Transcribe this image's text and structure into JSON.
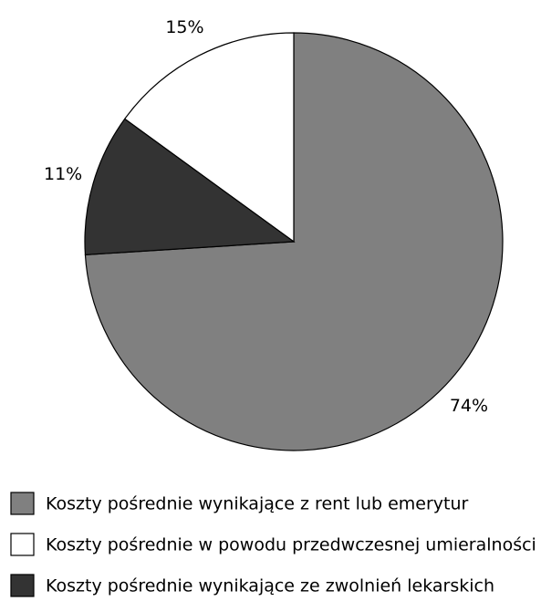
{
  "chart_data": {
    "type": "pie",
    "categories": [
      "Koszty pośrednie wynikające z rent lub emerytur",
      "Koszty pośrednie w powodu przedwczesnej umieralności",
      "Koszty pośrednie wynikające ze zwolnień lekarskich"
    ],
    "values": [
      74,
      15,
      11
    ],
    "value_labels": [
      "74%",
      "15%",
      "11%"
    ],
    "colors": [
      "#808080",
      "#ffffff",
      "#333333"
    ],
    "startangle": 266.4,
    "counterclock": true,
    "legend": "bottom-left"
  }
}
